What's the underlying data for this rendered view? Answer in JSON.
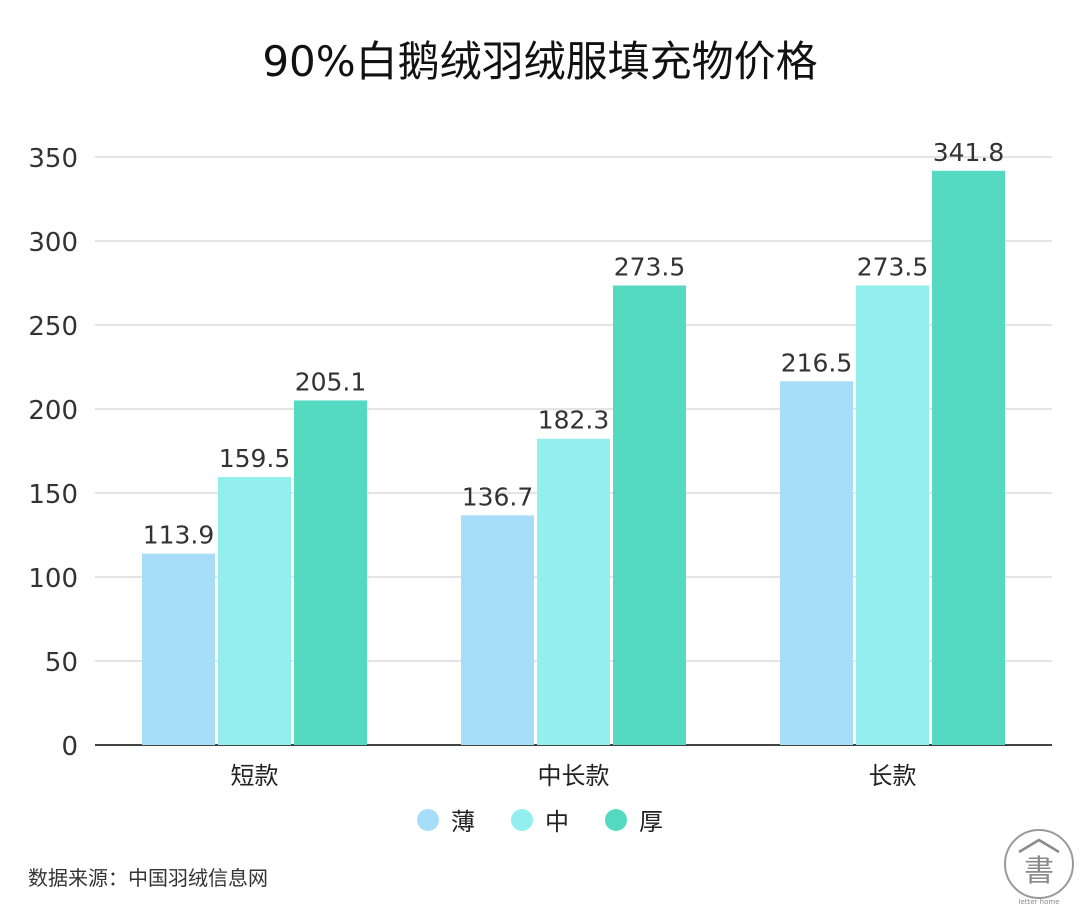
{
  "chart_data": {
    "type": "bar",
    "title": "90%白鹅绒羽绒服填充物价格",
    "categories": [
      "短款",
      "中长款",
      "长款"
    ],
    "series": [
      {
        "name": "薄",
        "color": "#a8ddf9",
        "values": [
          113.9,
          136.7,
          216.5
        ]
      },
      {
        "name": "中",
        "color": "#93efed",
        "values": [
          159.5,
          182.3,
          273.5
        ]
      },
      {
        "name": "厚",
        "color": "#56d9c1",
        "values": [
          205.1,
          273.5,
          341.8
        ]
      }
    ],
    "ylim": [
      0,
      350
    ],
    "yticks": [
      0,
      50,
      100,
      150,
      200,
      250,
      300,
      350
    ],
    "grid": true,
    "legend_position": "bottom"
  },
  "source": "数据来源：中国羽绒信息网",
  "logo": {
    "text": "letter home"
  }
}
